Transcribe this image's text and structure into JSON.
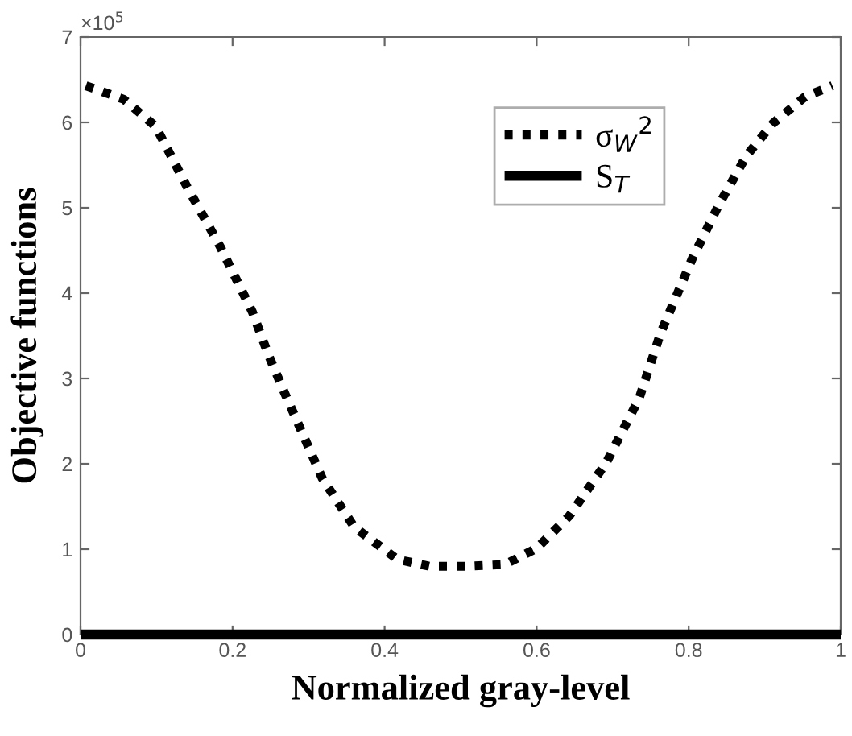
{
  "chart_data": {
    "type": "line",
    "xlabel": "Normalized gray-level",
    "ylabel": "Objective functions",
    "annotations": [
      "×10$^{5}$"
    ],
    "xlim": [
      0,
      1
    ],
    "xticks": [
      0,
      0.2,
      0.4,
      0.6,
      0.8,
      1
    ],
    "ylim": [
      0,
      7
    ],
    "yticks": [
      0,
      1,
      2,
      3,
      4,
      5,
      6,
      7
    ],
    "grid": false,
    "legend": "top right",
    "marker": "none",
    "series": [
      {
        "name": "σ$_{W}$$^{2}$",
        "color": "#000000",
        "line_style": "dotted",
        "x": [
          0.007,
          0.057,
          0.099,
          0.141,
          0.184,
          0.226,
          0.247,
          0.268,
          0.318,
          0.36,
          0.417,
          0.459,
          0.508,
          0.558,
          0.6,
          0.643,
          0.692,
          0.735,
          0.763,
          0.805,
          0.84,
          0.876,
          0.911,
          0.953,
          0.989
        ],
        "values": [
          6.43,
          6.27,
          5.95,
          5.23,
          4.54,
          3.78,
          3.28,
          2.84,
          1.83,
          1.26,
          0.88,
          0.8,
          0.8,
          0.82,
          1.01,
          1.39,
          2.02,
          2.77,
          3.53,
          4.41,
          5.04,
          5.61,
          5.99,
          6.3,
          6.43
        ]
      },
      {
        "name": "S$_{T}$",
        "color": "#000000",
        "line_style": "solid",
        "x": [
          0,
          1
        ],
        "values": [
          0,
          0
        ]
      }
    ]
  }
}
